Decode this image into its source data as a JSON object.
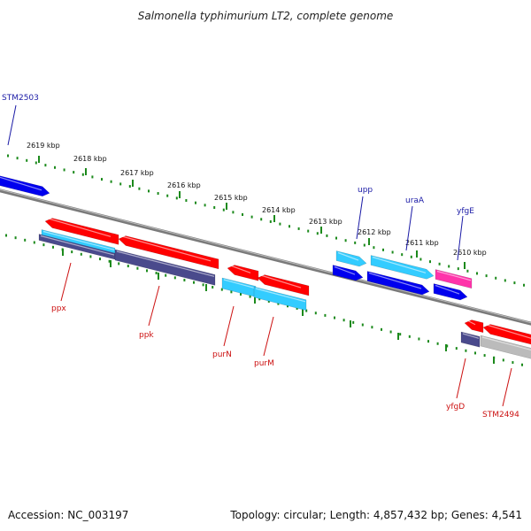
{
  "title": "Salmonella typhimurium LT2, complete genome",
  "footer": {
    "accession": "Accession: NC_003197",
    "summary": "Topology: circular; Length: 4,857,432 bp; Genes: 4,541"
  },
  "colors": {
    "backbone": "#888888",
    "tick": "#1c8a1c",
    "red": "#ff0000",
    "cyan": "#33ccff",
    "blue": "#0000ee",
    "navy": "#4a4a8c",
    "magenta": "#ff33aa",
    "gray": "#bbbbbb",
    "label_top": "#1a1aa6",
    "label_bottom": "#cc1111"
  },
  "ticks": [
    {
      "label": "2619 kbp"
    },
    {
      "label": "2618 kbp"
    },
    {
      "label": "2617 kbp"
    },
    {
      "label": "2616 kbp"
    },
    {
      "label": "2615 kbp"
    },
    {
      "label": "2614 kbp"
    },
    {
      "label": "2613 kbp"
    },
    {
      "label": "2612 kbp"
    },
    {
      "label": "2611 kbp"
    },
    {
      "label": "2610 kbp"
    }
  ],
  "genes_top": [
    {
      "name": "STM2503"
    },
    {
      "name": "upp"
    },
    {
      "name": "uraA"
    },
    {
      "name": "yfgE"
    }
  ],
  "genes_bottom": [
    {
      "name": "ppx"
    },
    {
      "name": "ppk"
    },
    {
      "name": "purN"
    },
    {
      "name": "purM"
    },
    {
      "name": "yfgD"
    },
    {
      "name": "STM2494"
    }
  ]
}
